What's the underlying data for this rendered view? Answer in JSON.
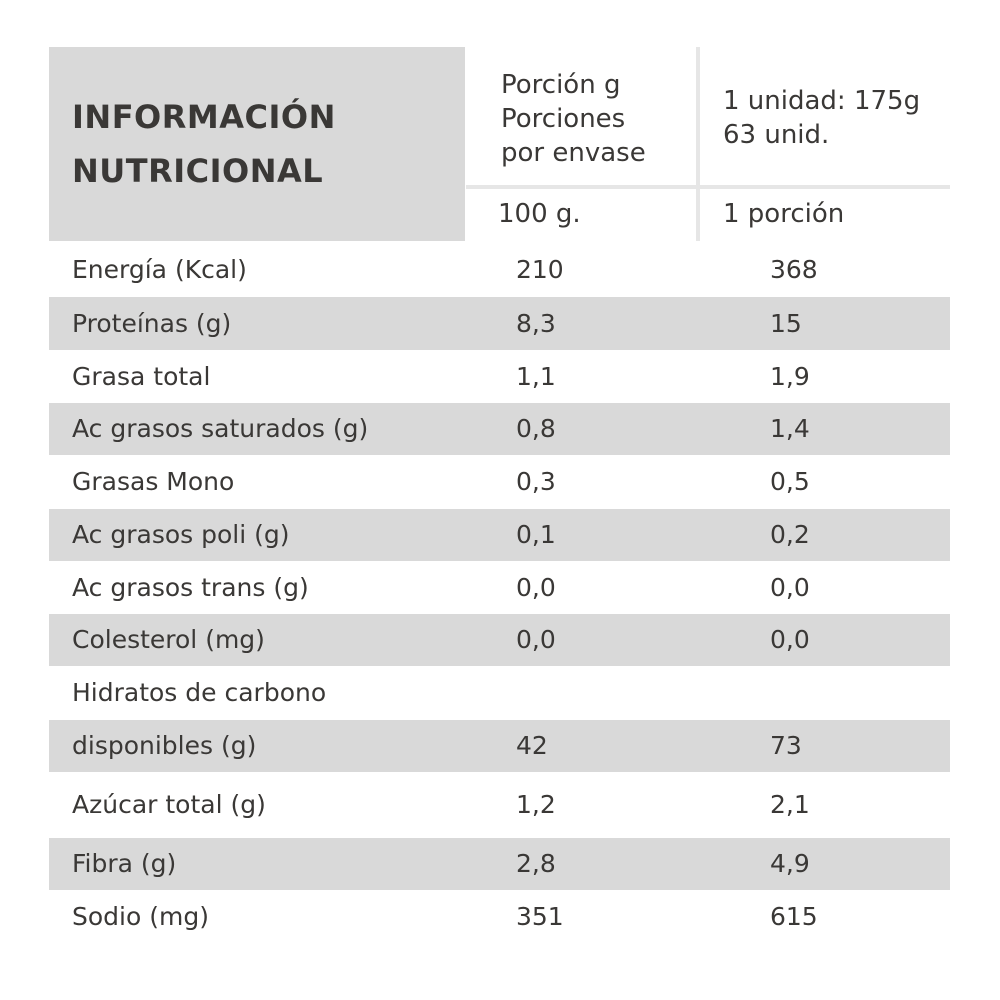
{
  "header": {
    "title": [
      "INFORMACIÓN",
      "NUTRICIONAL"
    ],
    "col1": [
      "Porción g",
      "Porciones",
      "por envase"
    ],
    "col2": [
      "1 unidad: 175g",
      "63 unid."
    ],
    "sub1": "100 g.",
    "sub2": "1 porción"
  },
  "table": {
    "rows": [
      [
        "Energía (Kcal)",
        "210",
        "368"
      ],
      [
        "Proteínas (g)",
        "8,3",
        "15"
      ],
      [
        "Grasa total",
        "1,1",
        "1,9"
      ],
      [
        "Ac grasos saturados (g)",
        "0,8",
        "1,4"
      ],
      [
        "Grasas Mono",
        "0,3",
        "0,5"
      ],
      [
        "Ac grasos poli (g)",
        "0,1",
        "0,2"
      ],
      [
        "Ac grasos trans (g)",
        "0,0",
        "0,0"
      ],
      [
        "Colesterol (mg)",
        "0,0",
        "0,0"
      ],
      [
        "Hidratos de carbono"
      ],
      [
        "disponibles (g)",
        "42",
        "73"
      ],
      [
        "Azúcar total (g)",
        "1,2",
        "2,1"
      ],
      [
        "Fibra (g)",
        "2,8",
        "4,9"
      ],
      [
        "Sodio (mg)",
        "351",
        "615"
      ]
    ]
  }
}
